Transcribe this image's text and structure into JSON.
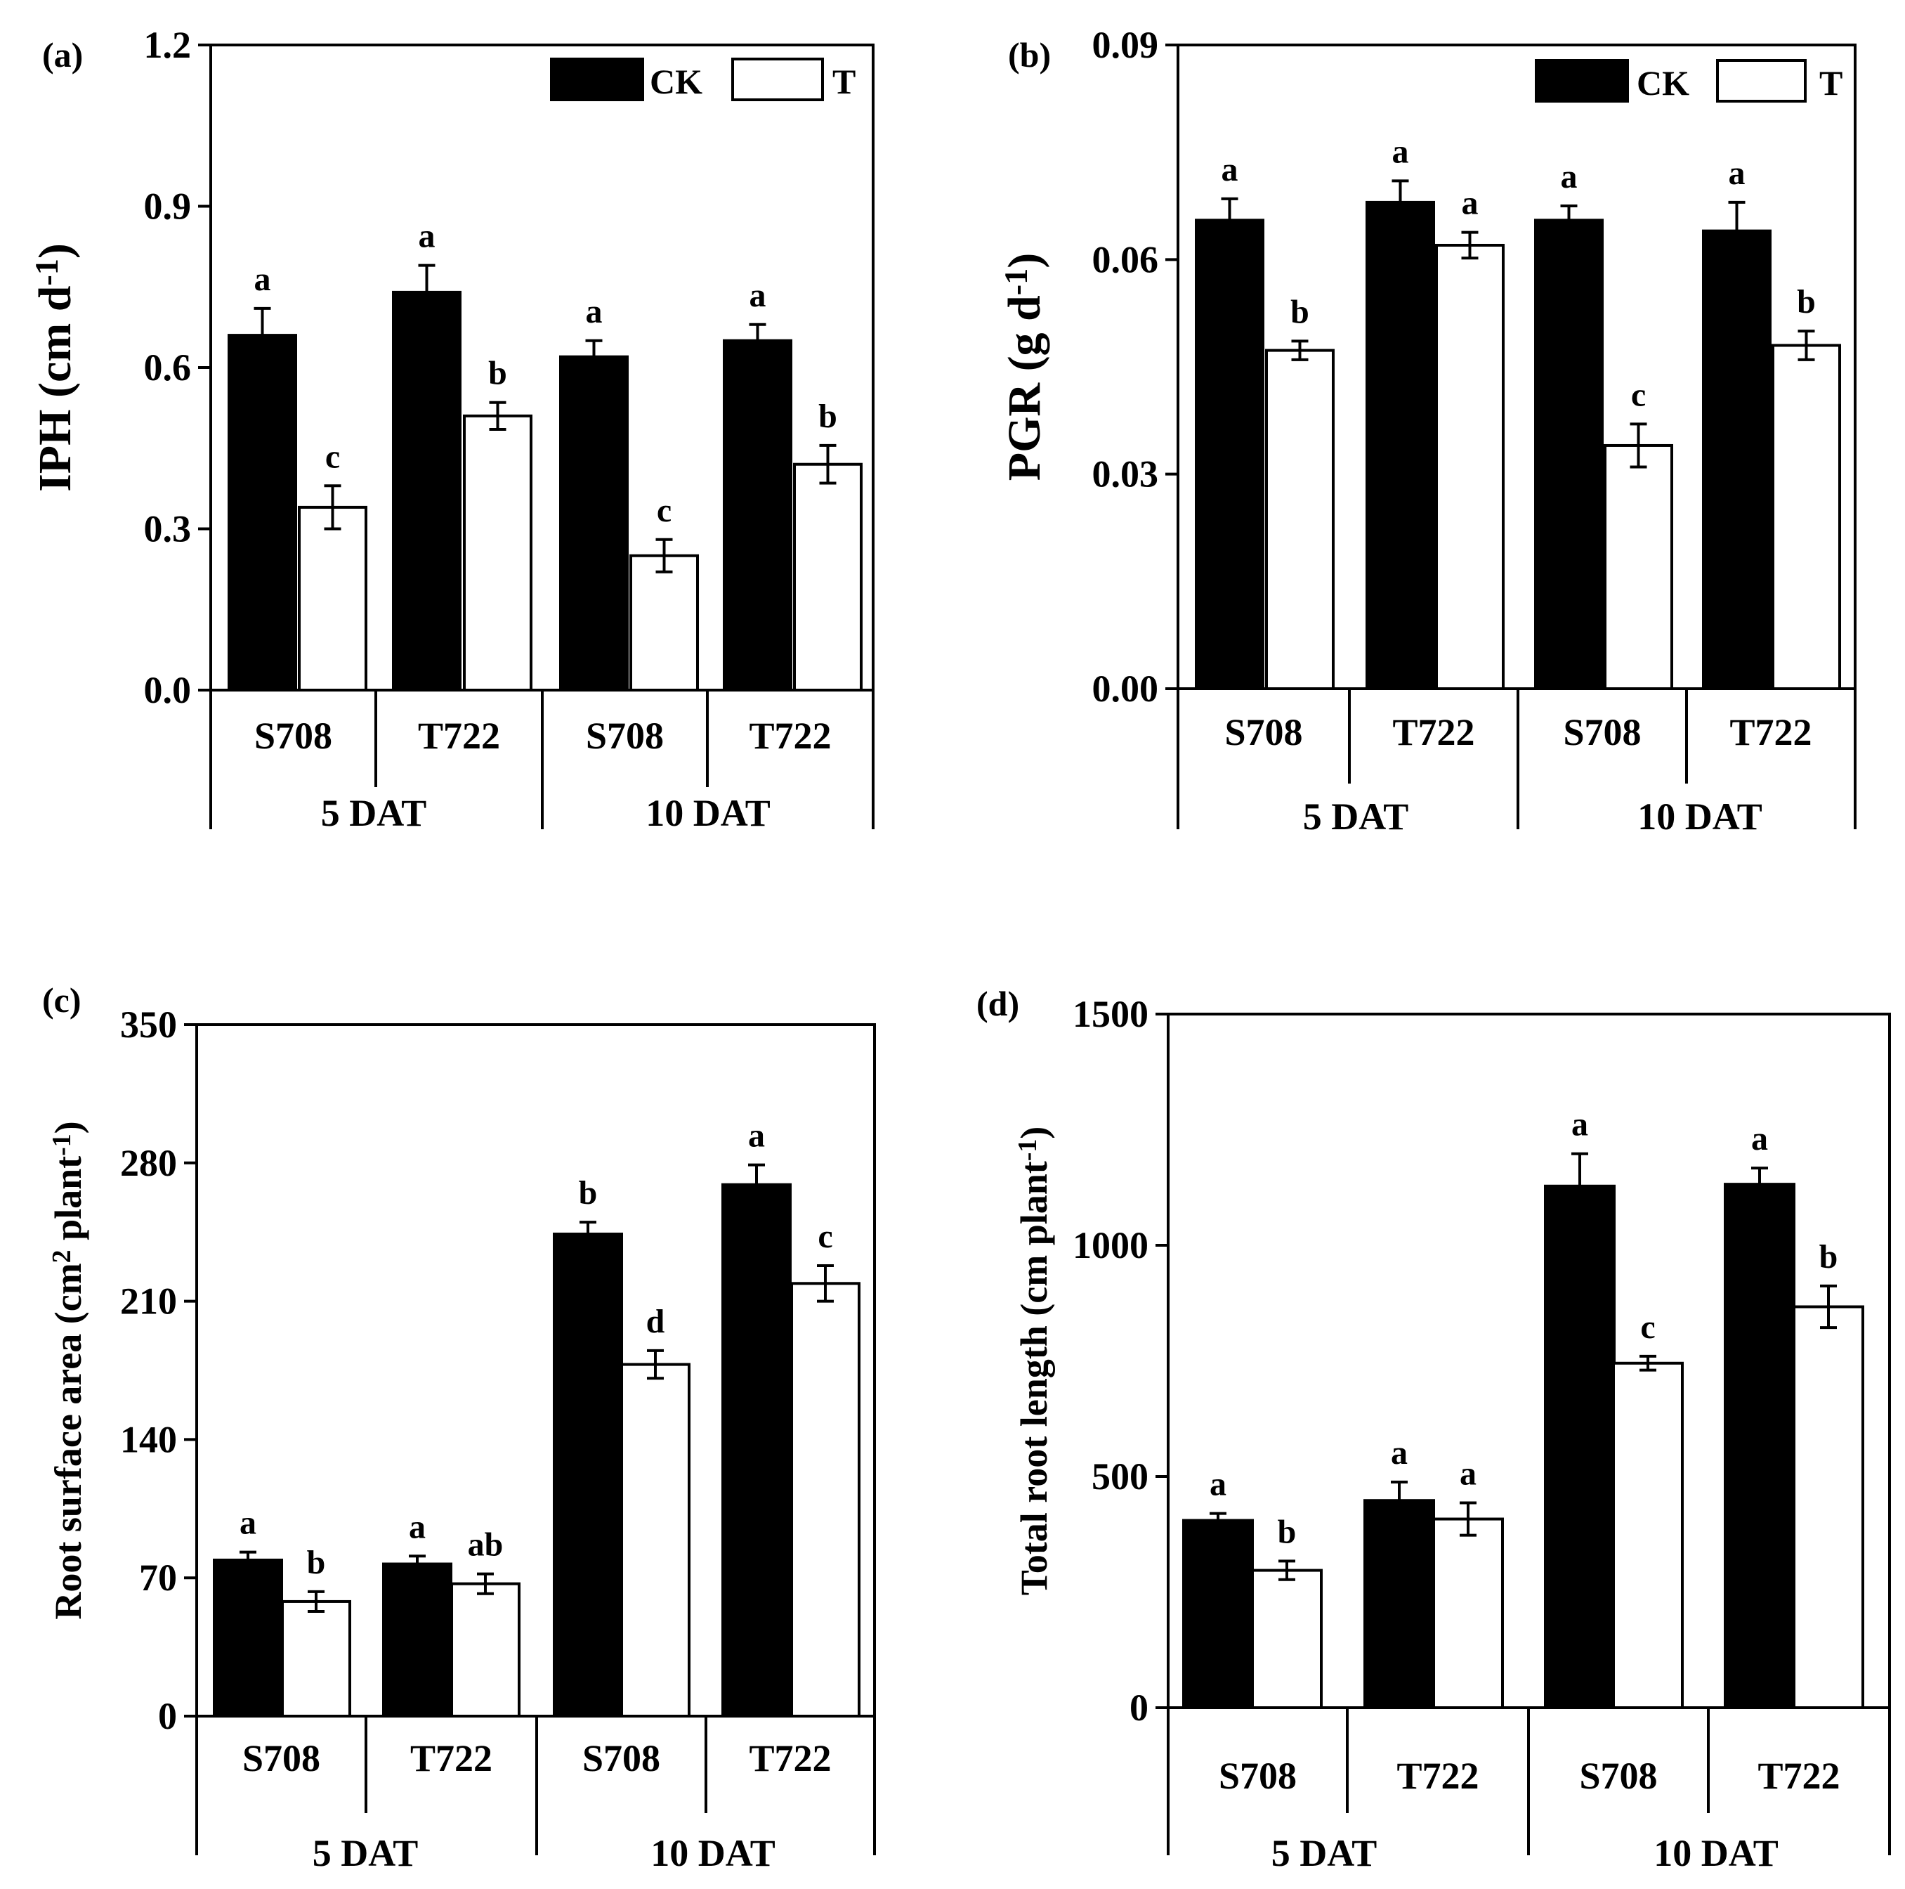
{
  "legend": {
    "ck": "CK",
    "t": "T"
  },
  "colors": {
    "ck": "#000000",
    "t": "#ffffff",
    "axis": "#000000"
  },
  "chart_data": [
    {
      "type": "bar",
      "panel": "(a)",
      "ylabel_main": "IPH (cm d",
      "ylabel_sup": "-1",
      "ylabel_end": ")",
      "ylim": [
        0,
        1.2
      ],
      "yticks": [
        "0.0",
        "0.3",
        "0.6",
        "0.9",
        "1.2"
      ],
      "categories": [
        "S708",
        "T722",
        "S708",
        "T722"
      ],
      "groups": [
        "5 DAT",
        "10 DAT"
      ],
      "series": [
        {
          "name": "CK",
          "values": [
            0.66,
            0.74,
            0.62,
            0.65
          ],
          "errors": [
            0.05,
            0.05,
            0.03,
            0.03
          ],
          "sig": [
            "a",
            "a",
            "a",
            "a"
          ]
        },
        {
          "name": "T",
          "values": [
            0.34,
            0.51,
            0.25,
            0.42
          ],
          "errors": [
            0.04,
            0.025,
            0.03,
            0.035
          ],
          "sig": [
            "c",
            "b",
            "c",
            "b"
          ]
        }
      ],
      "legend_loc": "top-right"
    },
    {
      "type": "bar",
      "panel": "(b)",
      "ylabel_main": "PGR (g d",
      "ylabel_sup": "-1",
      "ylabel_end": ")",
      "ylim": [
        0,
        0.09
      ],
      "yticks": [
        "0.00",
        "0.03",
        "0.06",
        "0.09"
      ],
      "categories": [
        "S708",
        "T722",
        "S708",
        "T722"
      ],
      "groups": [
        "5 DAT",
        "10 DAT"
      ],
      "series": [
        {
          "name": "CK",
          "values": [
            0.0655,
            0.068,
            0.0655,
            0.064
          ],
          "errors": [
            0.003,
            0.003,
            0.002,
            0.004
          ],
          "sig": [
            "a",
            "a",
            "a",
            "a"
          ]
        },
        {
          "name": "T",
          "values": [
            0.0473,
            0.062,
            0.034,
            0.048
          ],
          "errors": [
            0.0013,
            0.0018,
            0.003,
            0.002
          ],
          "sig": [
            "b",
            "a",
            "c",
            "b"
          ]
        }
      ],
      "legend_loc": "top-right"
    },
    {
      "type": "bar",
      "panel": "(c)",
      "ylabel_main": "Root surface area (cm",
      "ylabel_sup": "2",
      "ylabel_mid": " plant",
      "ylabel_sup2": "-1",
      "ylabel_end": ")",
      "ylim": [
        0,
        350
      ],
      "yticks": [
        "0",
        "70",
        "140",
        "210",
        "280",
        "350"
      ],
      "categories": [
        "S708",
        "T722",
        "S708",
        "T722"
      ],
      "groups": [
        "5 DAT",
        "10 DAT"
      ],
      "series": [
        {
          "name": "CK",
          "values": [
            79,
            77,
            244,
            269
          ],
          "errors": [
            4,
            4,
            6,
            10
          ],
          "sig": [
            "a",
            "a",
            "b",
            "a"
          ]
        },
        {
          "name": "T",
          "values": [
            58,
            67,
            178,
            219
          ],
          "errors": [
            5,
            5,
            7,
            9
          ],
          "sig": [
            "b",
            "ab",
            "d",
            "c"
          ]
        }
      ]
    },
    {
      "type": "bar",
      "panel": "(d)",
      "ylabel_main": "Total root length (cm plant",
      "ylabel_sup": "-1",
      "ylabel_end": ")",
      "ylim": [
        0,
        1500
      ],
      "yticks": [
        "0",
        "500",
        "1000",
        "1500"
      ],
      "categories": [
        "S708",
        "T722",
        "S708",
        "T722"
      ],
      "groups": [
        "5 DAT",
        "10 DAT"
      ],
      "series": [
        {
          "name": "CK",
          "values": [
            405,
            448,
            1128,
            1132
          ],
          "errors": [
            15,
            40,
            70,
            35
          ],
          "sig": [
            "a",
            "a",
            "a",
            "a"
          ]
        },
        {
          "name": "T",
          "values": [
            297,
            408,
            745,
            867
          ],
          "errors": [
            20,
            35,
            15,
            45
          ],
          "sig": [
            "b",
            "a",
            "c",
            "b"
          ]
        }
      ]
    }
  ]
}
